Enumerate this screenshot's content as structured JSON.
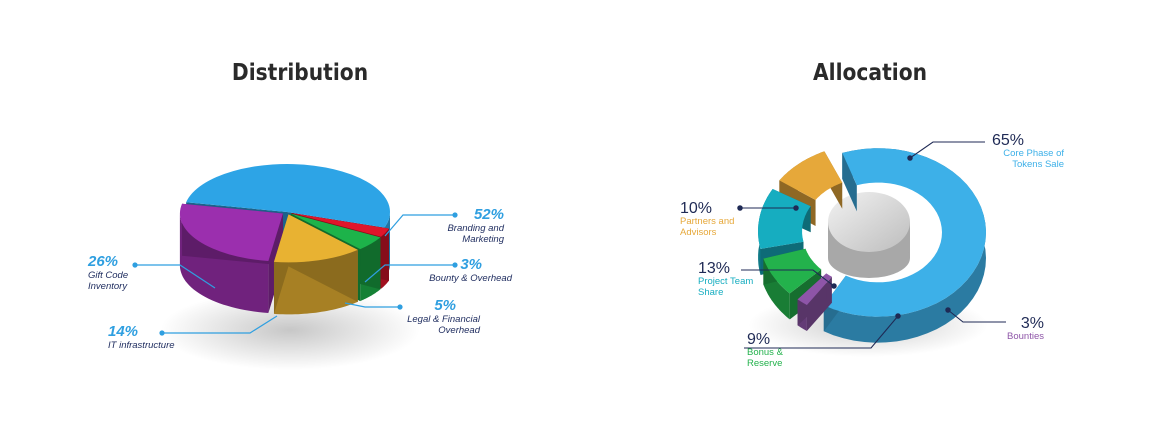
{
  "charts": [
    {
      "title": "Distribution",
      "chart_data": {
        "type": "pie",
        "slices": [
          {
            "label": "Branding and Marketing",
            "value": 52,
            "value_text": "52%",
            "color": "#2da4e6"
          },
          {
            "label": "Bounty & Overhead",
            "value": 3,
            "value_text": "3%",
            "color": "#e0162b"
          },
          {
            "label": "Legal & Financial Overhead",
            "value": 5,
            "value_text": "5%",
            "color": "#1db34a"
          },
          {
            "label": "IT infrastructure",
            "value": 14,
            "value_text": "14%",
            "color": "#e8b232"
          },
          {
            "label": "Gift Code Inventory",
            "value": 26,
            "value_text": "26%",
            "color": "#9b2fae"
          }
        ]
      }
    },
    {
      "title": "Allocation",
      "chart_data": {
        "type": "pie",
        "style": "donut",
        "slices": [
          {
            "label": "Core Phase of Tokens Sale",
            "value": 65,
            "value_text": "65%",
            "color": "#3db0e8"
          },
          {
            "label": "Bounties",
            "value": 3,
            "value_text": "3%",
            "color": "#8e55a8"
          },
          {
            "label": "Bonus & Reserve",
            "value": 9,
            "value_text": "9%",
            "color": "#23b24c"
          },
          {
            "label": "Project Team Share",
            "value": 13,
            "value_text": "13%",
            "color": "#16adc0"
          },
          {
            "label": "Partners and Advisors",
            "value": 10,
            "value_text": "10%",
            "color": "#e6a83a"
          }
        ]
      }
    }
  ]
}
